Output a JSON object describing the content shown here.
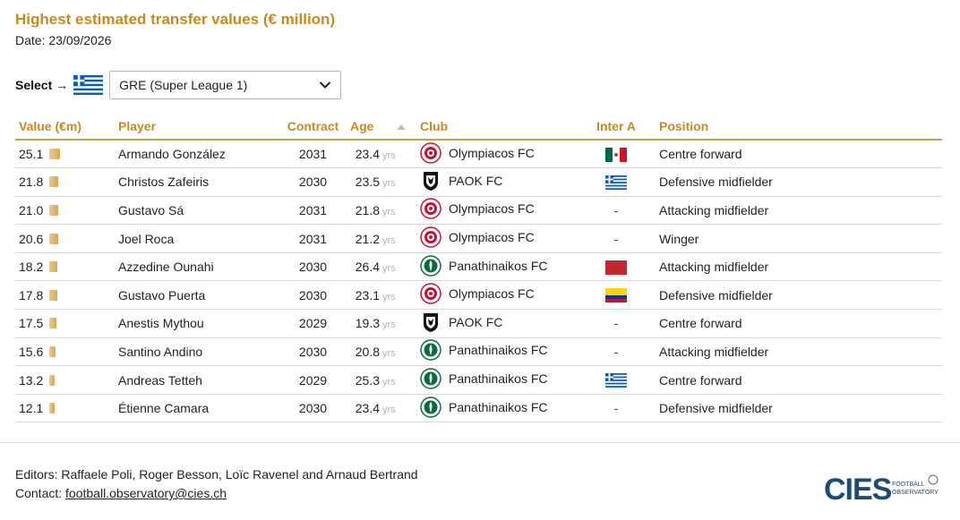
{
  "header": {
    "title": "Highest estimated transfer values (€ million)",
    "date": "Date: 23/09/2026"
  },
  "selector": {
    "label": "Select →",
    "flag_icon": "greece-flag-icon",
    "selected": "GRE (Super League 1)"
  },
  "table": {
    "columns": {
      "value": "Value (€m)",
      "player": "Player",
      "contract": "Contract",
      "age": "Age",
      "club": "Club",
      "inter": "Inter A",
      "position": "Position"
    },
    "age_unit": "yrs",
    "rows": [
      {
        "value": "25.1",
        "player": "Armando González",
        "contract": "2031",
        "age": "23.4",
        "club": "Olympiacos FC",
        "crest": "olympiacos",
        "inter": "mexico",
        "position": "Centre forward"
      },
      {
        "value": "21.8",
        "player": "Christos Zafeiris",
        "contract": "2030",
        "age": "23.5",
        "club": "PAOK FC",
        "crest": "paok",
        "inter": "greece",
        "position": "Defensive midfielder"
      },
      {
        "value": "21.0",
        "player": "Gustavo Sá",
        "contract": "2031",
        "age": "21.8",
        "club": "Olympiacos FC",
        "crest": "olympiacos",
        "inter": "-",
        "position": "Attacking midfielder"
      },
      {
        "value": "20.6",
        "player": "Joel Roca",
        "contract": "2031",
        "age": "21.2",
        "club": "Olympiacos FC",
        "crest": "olympiacos",
        "inter": "-",
        "position": "Winger"
      },
      {
        "value": "18.2",
        "player": "Azzedine Ounahi",
        "contract": "2030",
        "age": "26.4",
        "club": "Panathinaikos FC",
        "crest": "panathinaikos",
        "inter": "morocco",
        "position": "Attacking midfielder"
      },
      {
        "value": "17.8",
        "player": "Gustavo Puerta",
        "contract": "2030",
        "age": "23.1",
        "club": "Olympiacos FC",
        "crest": "olympiacos",
        "inter": "colombia",
        "position": "Defensive midfielder"
      },
      {
        "value": "17.5",
        "player": "Anestis Mythou",
        "contract": "2029",
        "age": "19.3",
        "club": "PAOK FC",
        "crest": "paok",
        "inter": "-",
        "position": "Centre forward"
      },
      {
        "value": "15.6",
        "player": "Santino Andino",
        "contract": "2030",
        "age": "20.8",
        "club": "Panathinaikos FC",
        "crest": "panathinaikos",
        "inter": "-",
        "position": "Attacking midfielder"
      },
      {
        "value": "13.2",
        "player": "Andreas Tetteh",
        "contract": "2029",
        "age": "25.3",
        "club": "Panathinaikos FC",
        "crest": "panathinaikos",
        "inter": "greece",
        "position": "Centre forward"
      },
      {
        "value": "12.1",
        "player": "Étienne Camara",
        "contract": "2030",
        "age": "23.4",
        "club": "Panathinaikos FC",
        "crest": "panathinaikos",
        "inter": "-",
        "position": "Defensive midfielder"
      }
    ]
  },
  "footer": {
    "editors": "Editors: Raffaele Poli, Roger Besson, Loïc Ravenel and Arnaud Bertrand",
    "contact_label": "Contact: ",
    "contact_email": "football.observatory@cies.ch"
  },
  "logo": {
    "text": "CIES",
    "sub1": "FOOTBALL",
    "sub2": "OBSERVATORY"
  },
  "colors": {
    "accent": "#c88a1e",
    "bar": "#d6aa55",
    "logo": "#1f4a72"
  }
}
